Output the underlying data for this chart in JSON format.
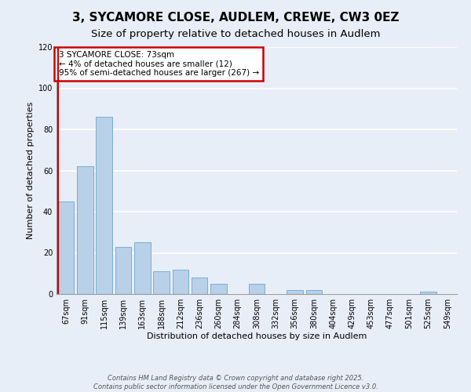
{
  "title": "3, SYCAMORE CLOSE, AUDLEM, CREWE, CW3 0EZ",
  "subtitle": "Size of property relative to detached houses in Audlem",
  "xlabel": "Distribution of detached houses by size in Audlem",
  "ylabel": "Number of detached properties",
  "bar_labels": [
    "67sqm",
    "91sqm",
    "115sqm",
    "139sqm",
    "163sqm",
    "188sqm",
    "212sqm",
    "236sqm",
    "260sqm",
    "284sqm",
    "308sqm",
    "332sqm",
    "356sqm",
    "380sqm",
    "404sqm",
    "429sqm",
    "453sqm",
    "477sqm",
    "501sqm",
    "525sqm",
    "549sqm"
  ],
  "bar_values": [
    45,
    62,
    86,
    23,
    25,
    11,
    12,
    8,
    5,
    0,
    5,
    0,
    2,
    2,
    0,
    0,
    0,
    0,
    0,
    1,
    0
  ],
  "bar_color": "#b8d0e8",
  "bar_edge_color": "#7aadd4",
  "highlight_line_color": "#cc0000",
  "annotation_title": "3 SYCAMORE CLOSE: 73sqm",
  "annotation_line1": "← 4% of detached houses are smaller (12)",
  "annotation_line2": "95% of semi-detached houses are larger (267) →",
  "annotation_box_color": "#cc0000",
  "ylim": [
    0,
    120
  ],
  "yticks": [
    0,
    20,
    40,
    60,
    80,
    100,
    120
  ],
  "footnote1": "Contains HM Land Registry data © Crown copyright and database right 2025.",
  "footnote2": "Contains public sector information licensed under the Open Government Licence v3.0.",
  "bg_color": "#e8eef8",
  "plot_bg_color": "#e8eef8",
  "grid_color": "#ffffff",
  "title_fontsize": 11,
  "subtitle_fontsize": 9.5,
  "axis_label_fontsize": 8,
  "tick_fontsize": 7,
  "annotation_fontsize": 7.5,
  "footnote_fontsize": 6
}
